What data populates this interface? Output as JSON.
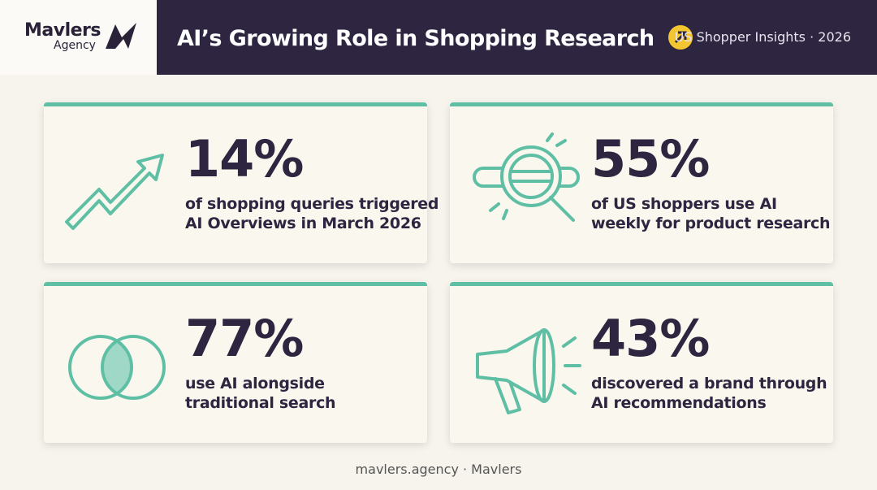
{
  "header": {
    "logo_name": "Mavlers",
    "logo_sub": "Agency",
    "title": "AI’s Growing Role in Shopping Research",
    "subtitle": "US Shopper Insights · 2026"
  },
  "cards": [
    {
      "stat": "14%",
      "lines": [
        "of shopping queries triggered",
        "AI Overviews in March 2026"
      ]
    },
    {
      "stat": "55%",
      "lines": [
        "of US shoppers use AI",
        "weekly for product research"
      ]
    },
    {
      "stat": "77%",
      "lines": [
        "use AI alongside",
        "traditional search"
      ]
    },
    {
      "stat": "43%",
      "lines": [
        "discovered a brand through",
        "AI recommendations"
      ]
    }
  ],
  "footer": "mavlers.agency · Mavlers"
}
